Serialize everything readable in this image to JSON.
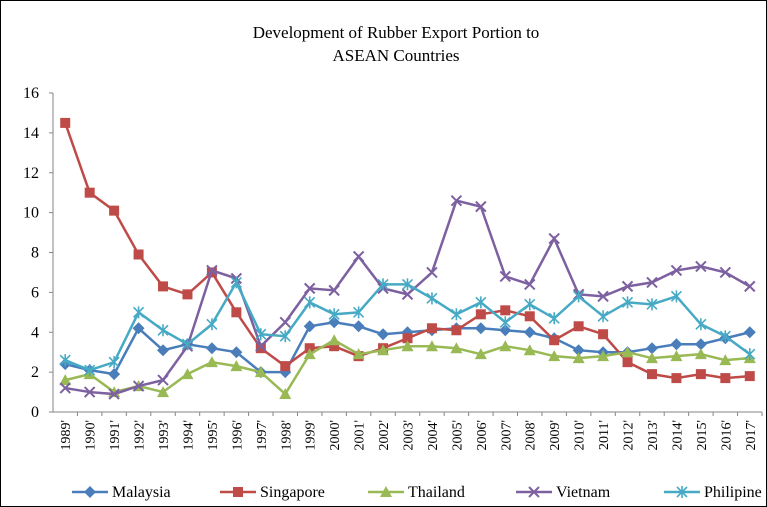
{
  "chart_data": {
    "type": "line",
    "title": [
      "Development of Rubber Export Portion to",
      "ASEAN Countries"
    ],
    "categories": [
      "1989'",
      "1990'",
      "1991'",
      "1992'",
      "1993'",
      "1994'",
      "1995'",
      "1996'",
      "1997'",
      "1998'",
      "1999'",
      "2000'",
      "2001'",
      "2002'",
      "2003'",
      "2004'",
      "2005'",
      "2006'",
      "2007'",
      "2008'",
      "2009'",
      "2010'",
      "2011'",
      "2012'",
      "2013'",
      "2014'",
      "2015'",
      "2016'",
      "2017'"
    ],
    "series": [
      {
        "name": "Malaysia",
        "color": "#4a7ebb",
        "marker": "diamond",
        "values": [
          2.4,
          2.1,
          1.9,
          4.2,
          3.1,
          3.4,
          3.2,
          3.0,
          2.0,
          2.0,
          4.3,
          4.5,
          4.3,
          3.9,
          4.0,
          4.1,
          4.2,
          4.2,
          4.1,
          4.0,
          3.7,
          3.1,
          3.0,
          3.0,
          3.2,
          3.4,
          3.4,
          3.7,
          4.0
        ]
      },
      {
        "name": "Singapore",
        "color": "#be4b48",
        "marker": "square",
        "values": [
          14.5,
          11.0,
          10.1,
          7.9,
          6.3,
          5.9,
          7.0,
          5.0,
          3.2,
          2.3,
          3.2,
          3.3,
          2.8,
          3.2,
          3.7,
          4.2,
          4.1,
          4.9,
          5.1,
          4.8,
          3.6,
          4.3,
          3.9,
          2.5,
          1.9,
          1.7,
          1.9,
          1.7,
          1.8
        ]
      },
      {
        "name": "Thailand",
        "color": "#98b954",
        "marker": "triangle",
        "values": [
          1.6,
          1.9,
          1.0,
          1.3,
          1.0,
          1.9,
          2.5,
          2.3,
          2.0,
          0.9,
          2.9,
          3.6,
          2.9,
          3.1,
          3.3,
          3.3,
          3.2,
          2.9,
          3.3,
          3.1,
          2.8,
          2.7,
          2.8,
          3.0,
          2.7,
          2.8,
          2.9,
          2.6,
          2.7
        ]
      },
      {
        "name": "Vietnam",
        "color": "#7d60a0",
        "marker": "x",
        "values": [
          1.2,
          1.0,
          0.9,
          1.3,
          1.6,
          3.3,
          7.1,
          6.7,
          3.3,
          4.5,
          6.2,
          6.1,
          7.8,
          6.2,
          5.9,
          7.0,
          10.6,
          10.3,
          6.8,
          6.4,
          8.7,
          5.9,
          5.8,
          6.3,
          6.5,
          7.1,
          7.3,
          7.0,
          6.3
        ]
      },
      {
        "name": "Philipine",
        "color": "#46aac5",
        "marker": "star",
        "values": [
          2.6,
          2.1,
          2.5,
          5.0,
          4.1,
          3.4,
          4.4,
          6.5,
          3.9,
          3.8,
          5.5,
          4.9,
          5.0,
          6.4,
          6.4,
          5.7,
          4.9,
          5.5,
          4.5,
          5.4,
          4.7,
          5.8,
          4.8,
          5.5,
          5.4,
          5.8,
          4.4,
          3.8,
          2.9
        ]
      }
    ],
    "ylim": [
      0,
      16
    ],
    "yticks": [
      0,
      2,
      4,
      6,
      8,
      10,
      12,
      14,
      16
    ],
    "grid": false,
    "legend": "bottom"
  }
}
